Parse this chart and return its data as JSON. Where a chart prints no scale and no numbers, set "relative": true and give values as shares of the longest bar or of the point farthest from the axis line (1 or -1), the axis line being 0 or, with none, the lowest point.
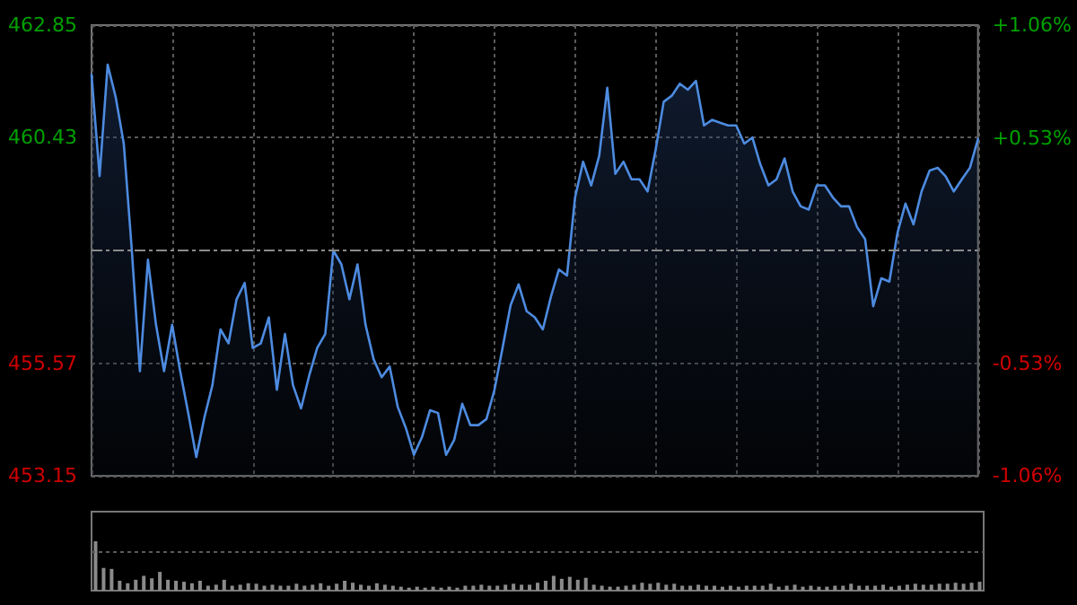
{
  "chart_data": [
    {
      "type": "area",
      "categories": [
        null,
        null,
        null,
        null,
        null,
        null,
        null,
        null,
        null,
        null,
        null,
        null,
        null,
        null,
        null,
        null,
        null,
        null,
        null,
        null,
        null,
        null,
        null,
        null,
        null,
        null,
        null,
        null,
        null,
        null,
        null,
        null,
        null,
        null,
        null,
        null,
        null,
        null,
        null,
        null,
        null,
        null,
        null,
        null,
        null,
        null,
        null,
        null,
        null,
        null,
        null,
        null,
        null,
        null,
        null,
        null,
        null,
        null,
        null,
        null,
        null,
        null,
        null,
        null,
        null,
        null,
        null,
        null,
        null,
        null,
        null,
        null,
        null,
        null,
        null,
        null,
        null,
        null,
        null,
        null,
        null,
        null,
        null,
        null,
        null,
        null,
        null,
        null,
        null,
        null,
        null,
        null,
        null,
        null,
        null,
        null,
        null,
        null,
        null,
        null,
        null,
        null,
        null,
        null,
        null,
        null,
        null,
        null,
        null,
        null,
        null
      ],
      "series": [
        {
          "color": "#4d8be0",
          "values": [
            461.78,
            459.6,
            462.0,
            461.3,
            460.3,
            458.0,
            455.4,
            457.8,
            456.4,
            455.4,
            456.4,
            455.4,
            454.5,
            453.55,
            454.4,
            455.1,
            456.3,
            456.0,
            456.95,
            457.3,
            455.9,
            456.0,
            456.56,
            455.0,
            456.2,
            455.1,
            454.6,
            455.3,
            455.9,
            456.2,
            458.0,
            457.7,
            456.95,
            457.7,
            456.4,
            455.66,
            455.27,
            455.5,
            454.63,
            454.18,
            453.6,
            453.98,
            454.56,
            454.5,
            453.6,
            453.92,
            454.7,
            454.24,
            454.24,
            454.37,
            455.0,
            455.9,
            456.82,
            457.27,
            456.69,
            456.56,
            456.3,
            457.0,
            457.59,
            457.46,
            459.14,
            459.91,
            459.4,
            460.04,
            461.5,
            459.65,
            459.91,
            459.53,
            459.53,
            459.27,
            460.17,
            461.2,
            461.33,
            461.59,
            461.46,
            461.65,
            460.69,
            460.81,
            460.75,
            460.69,
            460.69,
            460.3,
            460.43,
            459.85,
            459.4,
            459.53,
            459.98,
            459.27,
            458.95,
            458.88,
            459.4,
            459.4,
            459.14,
            458.95,
            458.95,
            458.5,
            458.24,
            456.8,
            457.4,
            457.33,
            458.37,
            459.01,
            458.56,
            459.27,
            459.72,
            459.78,
            459.59,
            459.27,
            459.53,
            459.78,
            460.4
          ]
        }
      ],
      "ylim": [
        453.15,
        462.85
      ],
      "yticks": [
        453.15,
        455.57,
        460.43,
        462.85
      ],
      "y2lim": [
        -1.06,
        1.06
      ],
      "y2ticks": [
        {
          "value": -1.06,
          "label": "-1.06%"
        },
        {
          "value": -0.53,
          "label": "-0.53%"
        },
        {
          "value": 0.53,
          "label": "+0.53%"
        },
        {
          "value": 1.06,
          "label": "+1.06%"
        }
      ],
      "ref_lines": [
        {
          "axis": "y",
          "value": 458.0,
          "label": null
        }
      ],
      "grid": true,
      "marker": "none",
      "line_style": "solid"
    },
    {
      "type": "bar",
      "relative": true,
      "ref_lines": [
        {
          "axis": "y",
          "value": 0.8,
          "label": null
        }
      ],
      "categories": [
        null,
        null,
        null,
        null,
        null,
        null,
        null,
        null,
        null,
        null,
        null,
        null,
        null,
        null,
        null,
        null,
        null,
        null,
        null,
        null,
        null,
        null,
        null,
        null,
        null,
        null,
        null,
        null,
        null,
        null,
        null,
        null,
        null,
        null,
        null,
        null,
        null,
        null,
        null,
        null,
        null,
        null,
        null,
        null,
        null,
        null,
        null,
        null,
        null,
        null,
        null,
        null,
        null,
        null,
        null,
        null,
        null,
        null,
        null,
        null,
        null,
        null,
        null,
        null,
        null,
        null,
        null,
        null,
        null,
        null,
        null,
        null,
        null,
        null,
        null,
        null,
        null,
        null,
        null,
        null,
        null,
        null,
        null,
        null,
        null,
        null,
        null,
        null,
        null,
        null,
        null,
        null,
        null,
        null,
        null,
        null,
        null,
        null,
        null,
        null,
        null,
        null,
        null,
        null,
        null,
        null,
        null,
        null,
        null,
        null,
        null
      ],
      "color": "#8a8a8a",
      "values": [
        1.0,
        0.46,
        0.44,
        0.2,
        0.15,
        0.22,
        0.3,
        0.25,
        0.38,
        0.22,
        0.2,
        0.18,
        0.15,
        0.2,
        0.1,
        0.12,
        0.22,
        0.1,
        0.12,
        0.15,
        0.14,
        0.1,
        0.12,
        0.1,
        0.1,
        0.14,
        0.1,
        0.12,
        0.15,
        0.1,
        0.14,
        0.2,
        0.16,
        0.12,
        0.1,
        0.15,
        0.12,
        0.1,
        0.08,
        0.06,
        0.08,
        0.06,
        0.08,
        0.06,
        0.08,
        0.06,
        0.1,
        0.1,
        0.12,
        0.1,
        0.1,
        0.12,
        0.14,
        0.12,
        0.12,
        0.16,
        0.2,
        0.3,
        0.24,
        0.28,
        0.22,
        0.26,
        0.12,
        0.1,
        0.08,
        0.08,
        0.1,
        0.12,
        0.16,
        0.14,
        0.16,
        0.12,
        0.14,
        0.1,
        0.1,
        0.12,
        0.1,
        0.1,
        0.08,
        0.1,
        0.08,
        0.1,
        0.1,
        0.1,
        0.14,
        0.08,
        0.1,
        0.12,
        0.08,
        0.1,
        0.08,
        0.08,
        0.1,
        0.1,
        0.14,
        0.1,
        0.1,
        0.1,
        0.12,
        0.08,
        0.1,
        0.12,
        0.14,
        0.12,
        0.12,
        0.14,
        0.14,
        0.16,
        0.14,
        0.16,
        0.18
      ]
    }
  ]
}
